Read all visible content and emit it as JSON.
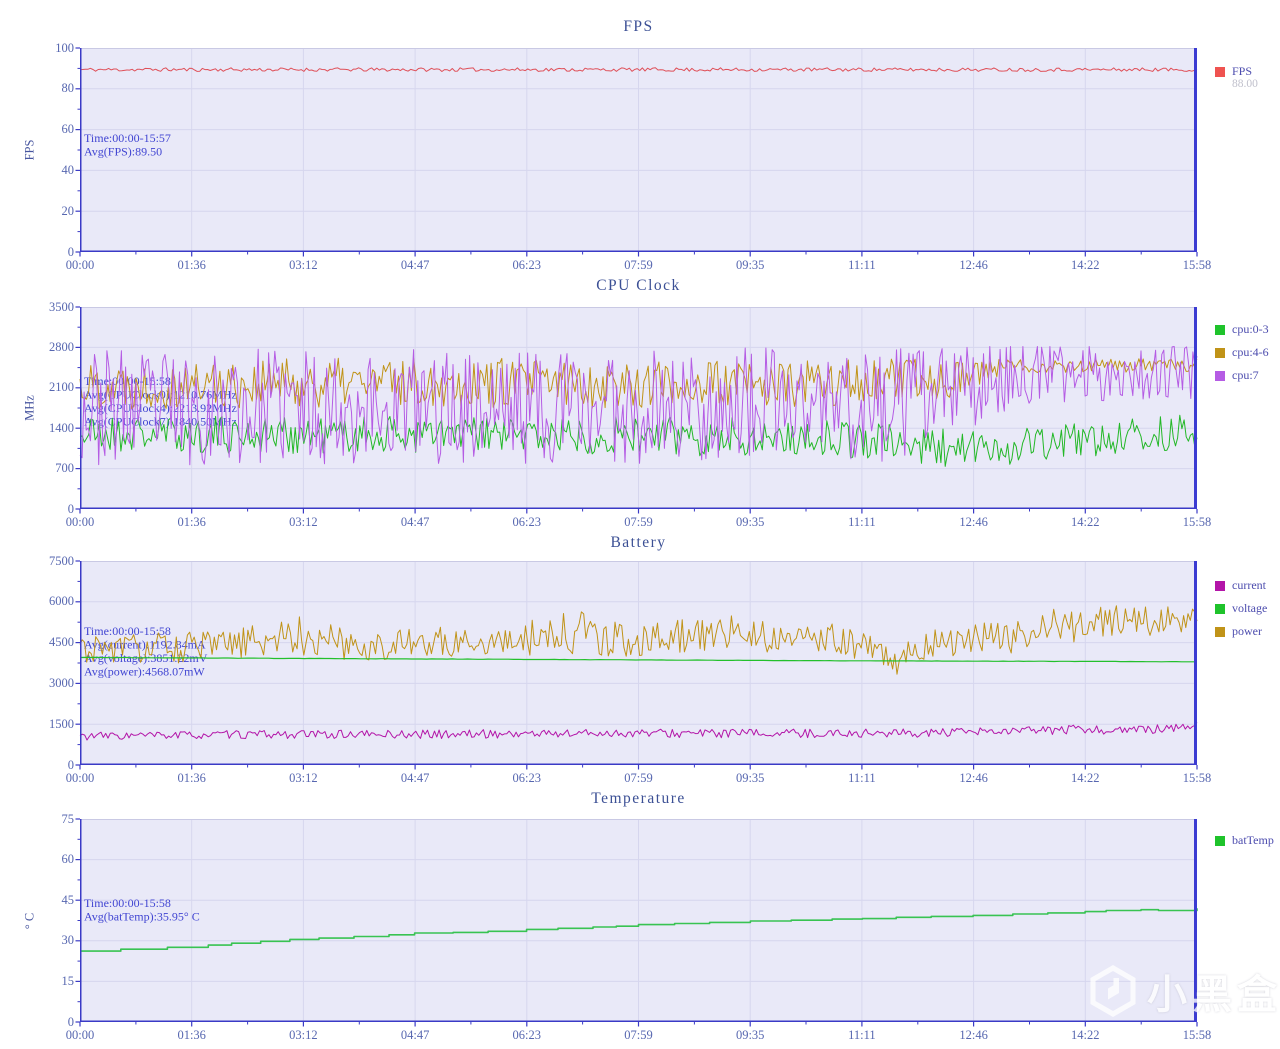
{
  "watermark": {
    "text": "小黑盒",
    "logo_icon": "heybox-logo"
  },
  "colors": {
    "plot_bg": "#e9e9f8",
    "grid": "#d6d6ee",
    "spine": "#3a3ac6",
    "right_spine": "#3b3bd2",
    "top_border": "#c9c9e4",
    "title_text": "#3c5095",
    "tick_text": "#5767b0",
    "annotation_text": "#4145d2",
    "legend_text": "#4c4cae",
    "legend_value_text": "#c0c0cc"
  },
  "x_axis": {
    "duration_seconds": 958,
    "tick_labels": [
      "00:00",
      "01:36",
      "03:12",
      "04:47",
      "06:23",
      "07:59",
      "09:35",
      "11:11",
      "12:46",
      "14:22",
      "15:58"
    ]
  },
  "chart_data": [
    {
      "type": "line",
      "title": "FPS",
      "ylabel": "FPS",
      "xlabel": "",
      "ylim": [
        0,
        100
      ],
      "yticks": [
        0,
        20,
        40,
        60,
        80,
        100
      ],
      "annotation": "Time:00:00-15:57\nAvg(FPS):89.50",
      "legend": [
        {
          "label": "FPS",
          "color": "#ef5350",
          "current_value": "88.00"
        }
      ],
      "series": [
        {
          "name": "FPS",
          "color": "#df4f58",
          "width": 1,
          "render": "noisy",
          "avg": 89.5,
          "anchors": [
            [
              0,
              89.4,
              0.9
            ],
            [
              958,
              89.4,
              0.9
            ]
          ],
          "clamp": [
            85.8,
            90.9
          ],
          "points": 430,
          "seed": 11
        }
      ]
    },
    {
      "type": "line",
      "title": "CPU Clock",
      "ylabel": "MHz",
      "xlabel": "",
      "ylim": [
        0,
        3500
      ],
      "yticks": [
        0,
        700,
        1400,
        2100,
        2800,
        3500
      ],
      "annotation": "Time:00:00-15:58\nAvg(CPUClock0):1210.76MHz\nAvg(CPUClock4):2213.92MHz\nAvg(CPUClock7):1840.50MHz",
      "legend": [
        {
          "label": "cpu:0-3",
          "color": "#1fc32b"
        },
        {
          "label": "cpu:4-6",
          "color": "#c09318"
        },
        {
          "label": "cpu:7",
          "color": "#b55ce4"
        }
      ],
      "series": [
        {
          "name": "cpu:0-3",
          "color": "#23b827",
          "width": 1,
          "render": "noisy",
          "avg": 1210.76,
          "anchors": [
            [
              0,
              1300,
              330
            ],
            [
              430,
              1280,
              330
            ],
            [
              650,
              1230,
              340
            ],
            [
              760,
              1020,
              330
            ],
            [
              830,
              1150,
              340
            ],
            [
              958,
              1330,
              330
            ]
          ],
          "clamp": [
            620,
            2050
          ],
          "points": 520,
          "seed": 21
        },
        {
          "name": "cpu:4-6",
          "color": "#c09318",
          "width": 1,
          "render": "noisy",
          "avg": 2213.92,
          "anchors": [
            [
              0,
              2150,
              420
            ],
            [
              300,
              2200,
              430
            ],
            [
              600,
              2150,
              430
            ],
            [
              740,
              2250,
              360
            ],
            [
              800,
              2480,
              130
            ],
            [
              958,
              2490,
              110
            ]
          ],
          "clamp": [
            850,
            2800
          ],
          "points": 520,
          "seed": 22
        },
        {
          "name": "cpu:7",
          "color": "#b55ce4",
          "width": 1,
          "render": "noisy",
          "avg": 1840.5,
          "anchors": [
            [
              0,
              1760,
              1010
            ],
            [
              700,
              1800,
              1010
            ],
            [
              810,
              2350,
              520
            ],
            [
              958,
              2380,
              470
            ]
          ],
          "clamp": [
            700,
            2815
          ],
          "points": 540,
          "seed": 23
        }
      ]
    },
    {
      "type": "line",
      "title": "Battery",
      "ylabel": "",
      "xlabel": "",
      "ylim": [
        0,
        7500
      ],
      "yticks": [
        0,
        1500,
        3000,
        4500,
        6000,
        7500
      ],
      "annotation": "Time:00:00-15:58\nAvg(current):1192.84mA\nAvg(voltage):3851.22mV\nAvg(power):4568.07mW",
      "legend": [
        {
          "label": "current",
          "color": "#b315a8"
        },
        {
          "label": "voltage",
          "color": "#1fc32b"
        },
        {
          "label": "power",
          "color": "#c09318"
        }
      ],
      "series": [
        {
          "name": "power",
          "color": "#c09318",
          "width": 1,
          "render": "noisy",
          "avg": 4568.07,
          "anchors": [
            [
              0,
              4250,
              520
            ],
            [
              120,
              4350,
              600
            ],
            [
              190,
              4800,
              800
            ],
            [
              240,
              4350,
              520
            ],
            [
              300,
              4500,
              560
            ],
            [
              380,
              4650,
              640
            ],
            [
              430,
              4900,
              820
            ],
            [
              470,
              4550,
              600
            ],
            [
              520,
              4750,
              640
            ],
            [
              560,
              4950,
              620
            ],
            [
              600,
              4650,
              560
            ],
            [
              640,
              4750,
              620
            ],
            [
              680,
              4200,
              640
            ],
            [
              700,
              3850,
              620
            ],
            [
              730,
              4550,
              560
            ],
            [
              770,
              4650,
              600
            ],
            [
              800,
              4600,
              620
            ],
            [
              830,
              5300,
              660
            ],
            [
              860,
              5100,
              620
            ],
            [
              890,
              5350,
              580
            ],
            [
              930,
              5250,
              620
            ],
            [
              958,
              5600,
              520
            ]
          ],
          "clamp": [
            2650,
            6900
          ],
          "points": 500,
          "seed": 31
        },
        {
          "name": "voltage",
          "color": "#23c02c",
          "width": 1.2,
          "render": "noisy",
          "avg": 3851.22,
          "anchors": [
            [
              0,
              3955,
              5
            ],
            [
              200,
              3915,
              5
            ],
            [
              400,
              3880,
              5
            ],
            [
              600,
              3840,
              5
            ],
            [
              958,
              3795,
              5
            ]
          ],
          "clamp": [
            3600,
            4100
          ],
          "points": 220,
          "seed": 32
        },
        {
          "name": "current",
          "color": "#b315a8",
          "width": 1,
          "render": "noisy",
          "avg": 1192.84,
          "anchors": [
            [
              0,
              1060,
              150
            ],
            [
              150,
              1120,
              150
            ],
            [
              300,
              1130,
              160
            ],
            [
              450,
              1170,
              160
            ],
            [
              600,
              1160,
              160
            ],
            [
              750,
              1180,
              160
            ],
            [
              850,
              1300,
              170
            ],
            [
              910,
              1280,
              160
            ],
            [
              958,
              1430,
              150
            ]
          ],
          "clamp": [
            760,
            1680
          ],
          "points": 480,
          "seed": 33
        }
      ]
    },
    {
      "type": "line",
      "title": "Temperature",
      "ylabel": "° C",
      "xlabel": "",
      "ylim": [
        0,
        75
      ],
      "yticks": [
        0,
        15,
        30,
        45,
        60,
        75
      ],
      "annotation": "Time:00:00-15:58\nAvg(batTemp):35.95° C",
      "legend": [
        {
          "label": "batTemp",
          "color": "#1fc32b"
        }
      ],
      "series": [
        {
          "name": "batTemp",
          "color": "#38c352",
          "width": 1.6,
          "render": "steps",
          "avg": 35.95,
          "steps": [
            [
              0,
              26.2
            ],
            [
              35,
              26.9
            ],
            [
              75,
              27.6
            ],
            [
              110,
              28.4
            ],
            [
              130,
              29.1
            ],
            [
              155,
              29.8
            ],
            [
              180,
              30.5
            ],
            [
              205,
              31.0
            ],
            [
              235,
              31.6
            ],
            [
              265,
              32.2
            ],
            [
              287,
              32.9
            ],
            [
              320,
              33.1
            ],
            [
              350,
              33.5
            ],
            [
              383,
              34.2
            ],
            [
              410,
              34.6
            ],
            [
              440,
              35.1
            ],
            [
              460,
              35.4
            ],
            [
              479,
              36.0
            ],
            [
              510,
              36.4
            ],
            [
              540,
              36.8
            ],
            [
              575,
              37.3
            ],
            [
              610,
              37.6
            ],
            [
              645,
              38.0
            ],
            [
              671,
              38.2
            ],
            [
              700,
              38.7
            ],
            [
              730,
              39.0
            ],
            [
              766,
              39.4
            ],
            [
              800,
              39.9
            ],
            [
              830,
              40.3
            ],
            [
              862,
              40.8
            ],
            [
              880,
              41.2
            ],
            [
              910,
              41.5
            ],
            [
              925,
              41.2
            ],
            [
              958,
              42.0
            ]
          ]
        }
      ]
    }
  ]
}
